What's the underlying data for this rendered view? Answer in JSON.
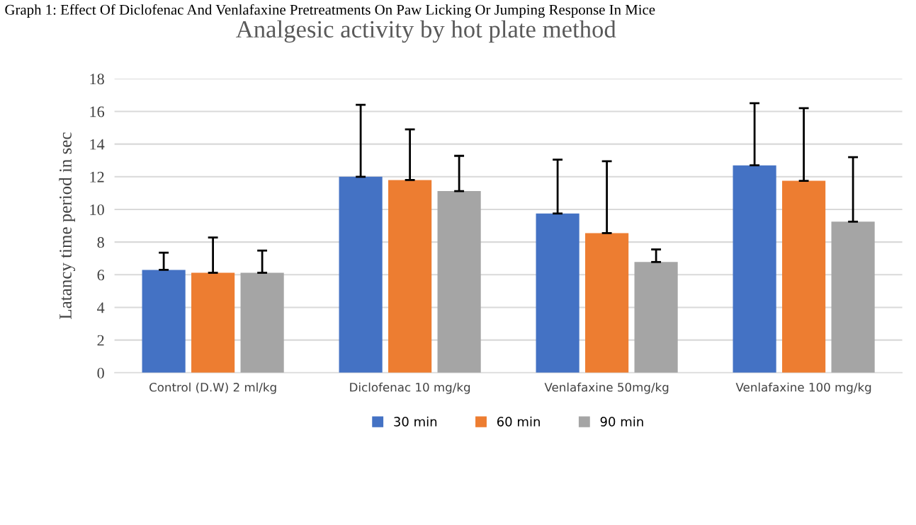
{
  "chart_data": {
    "type": "bar",
    "title": "Analgesic activity by hot plate method",
    "ylabel": "Latancy time period in sec",
    "annotations": [
      "Graph 1: Effect Of Diclofenac And Venlafaxine Pretreatments On Paw Licking Or Jumping Response In Mice"
    ],
    "categories": [
      "Control (D.W) 2 ml/kg",
      "Diclofenac 10 mg/kg",
      "Venlafaxine 50mg/kg",
      "Venlafaxine 100 mg/kg"
    ],
    "series": [
      {
        "name": "30 min",
        "color": "#4472c4",
        "values": [
          6.3,
          12.0,
          9.75,
          12.7
        ],
        "errors": [
          [
            6.3,
            7.35
          ],
          [
            12.0,
            16.4
          ],
          [
            9.75,
            13.05
          ],
          [
            12.7,
            16.5
          ]
        ]
      },
      {
        "name": "60 min",
        "color": "#ed7d31",
        "values": [
          6.12,
          11.8,
          8.55,
          11.75
        ],
        "errors": [
          [
            6.12,
            8.28
          ],
          [
            11.8,
            14.9
          ],
          [
            8.55,
            12.95
          ],
          [
            11.75,
            16.2
          ]
        ]
      },
      {
        "name": "90 min",
        "color": "#a5a5a5",
        "values": [
          6.12,
          11.12,
          6.78,
          9.25
        ],
        "errors": [
          [
            6.12,
            7.48
          ],
          [
            11.12,
            13.28
          ],
          [
            6.78,
            7.55
          ],
          [
            9.25,
            13.2
          ]
        ]
      }
    ],
    "ylim": [
      0,
      18
    ],
    "yticks": [
      0,
      2,
      4,
      6,
      8,
      10,
      12,
      14,
      16,
      18
    ],
    "grid": "y",
    "legend": "bottom"
  }
}
